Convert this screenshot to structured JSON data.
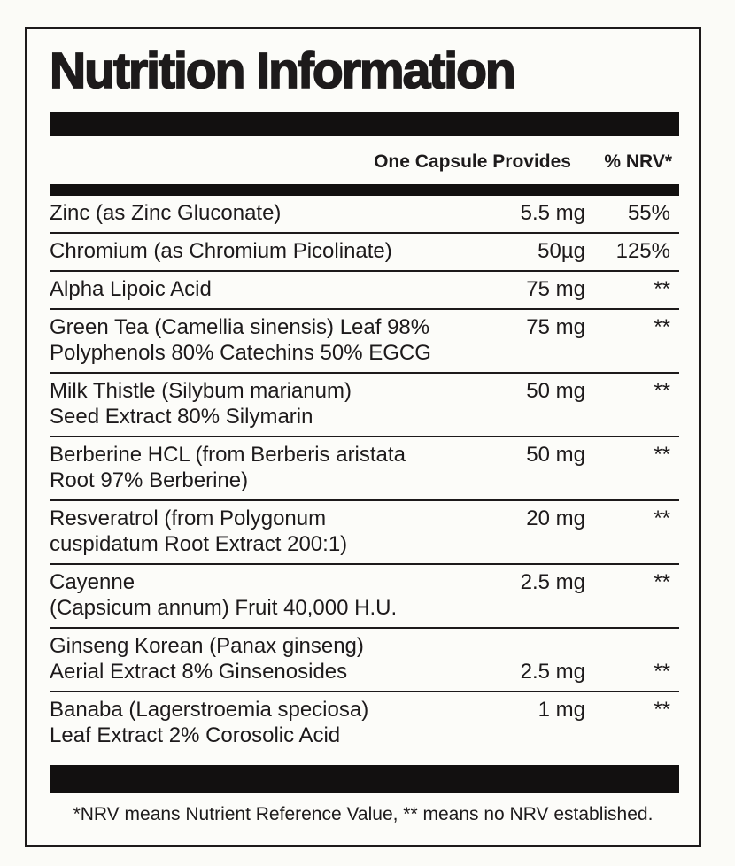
{
  "label": {
    "title": "Nutrition Information",
    "header": {
      "amount_column": "One Capsule Provides",
      "nrv_column": "% NRV*"
    },
    "rows": [
      {
        "name_lines": [
          "Zinc (as Zinc Gluconate)"
        ],
        "amount": "5.5 mg",
        "nrv": "55%"
      },
      {
        "name_lines": [
          "Chromium (as Chromium Picolinate)"
        ],
        "amount": "50µg",
        "nrv": "125%"
      },
      {
        "name_lines": [
          "Alpha Lipoic Acid"
        ],
        "amount": "75 mg",
        "nrv": "**"
      },
      {
        "name_lines": [
          "Green Tea (Camellia sinensis) Leaf 98%",
          "Polyphenols 80% Catechins 50% EGCG"
        ],
        "amount": "75 mg",
        "nrv": "**"
      },
      {
        "name_lines": [
          "Milk Thistle (Silybum marianum)",
          "Seed Extract 80% Silymarin"
        ],
        "amount": "50 mg",
        "nrv": "**"
      },
      {
        "name_lines": [
          "Berberine HCL (from Berberis aristata",
          "Root 97% Berberine)"
        ],
        "amount": "50 mg",
        "nrv": "**"
      },
      {
        "name_lines": [
          "Resveratrol (from Polygonum",
          "cuspidatum Root Extract 200:1)"
        ],
        "amount": "20 mg",
        "nrv": "**"
      },
      {
        "name_lines": [
          "Cayenne",
          "(Capsicum annum) Fruit 40,000 H.U."
        ],
        "amount": "2.5 mg",
        "nrv": "**"
      },
      {
        "name_lines": [
          "Ginseng Korean (Panax ginseng)",
          "Aerial Extract 8% Ginsenosides"
        ],
        "amount": "2.5 mg",
        "nrv": "**",
        "value_align": "bottom"
      },
      {
        "name_lines": [
          "Banaba (Lagerstroemia speciosa)",
          "Leaf Extract 2% Corosolic Acid"
        ],
        "amount": "1 mg",
        "nrv": "**"
      }
    ],
    "footnote": "*NRV means Nutrient Reference Value, ** means no NRV established.",
    "colors": {
      "ink": "#1d1a1b",
      "bar": "#121010",
      "paper": "#fcfcf9"
    }
  }
}
